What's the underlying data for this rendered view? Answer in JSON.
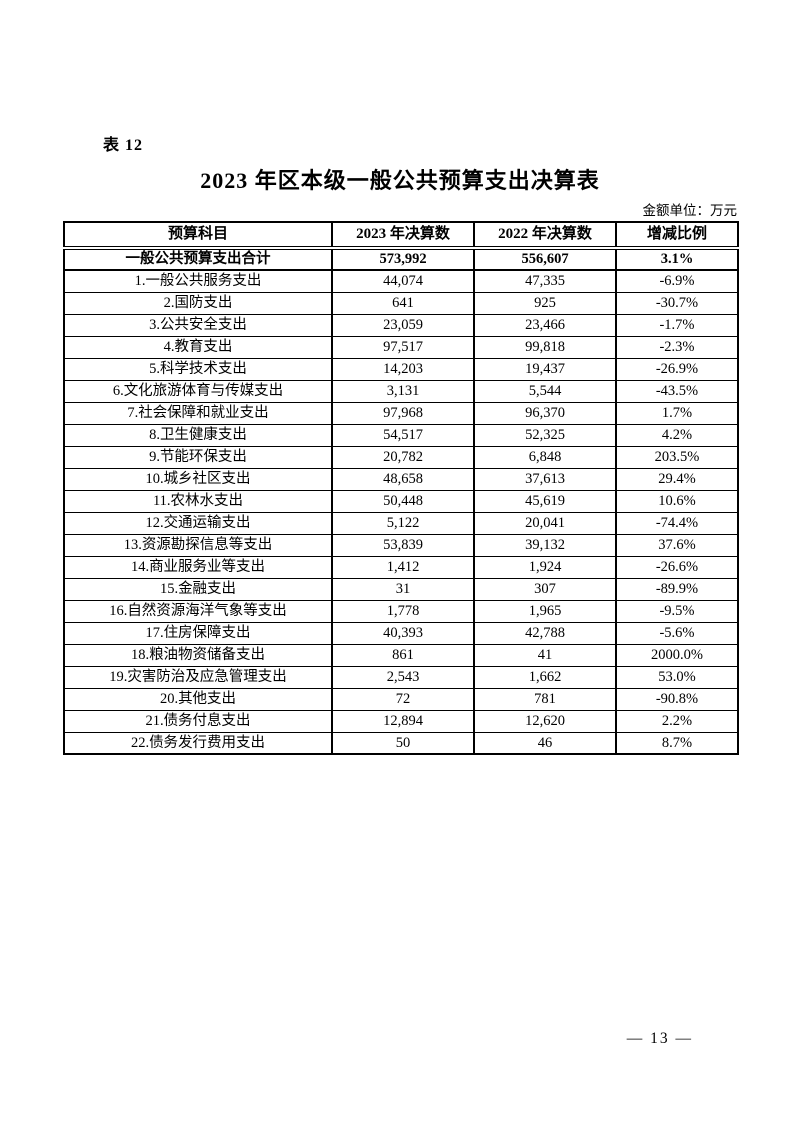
{
  "document": {
    "table_label": "表 12",
    "title": "2023 年区本级一般公共预算支出决算表",
    "unit_note": "金额单位：万元",
    "page_number": "— 13 —"
  },
  "table": {
    "headers": [
      "预算科目",
      "2023 年决算数",
      "2022 年决算数",
      "增减比例"
    ],
    "total_row": {
      "subject": "一般公共预算支出合计",
      "fy2023": "573,992",
      "fy2022": "556,607",
      "change": "3.1%"
    },
    "rows": [
      {
        "subject": "1.一般公共服务支出",
        "fy2023": "44,074",
        "fy2022": "47,335",
        "change": "-6.9%"
      },
      {
        "subject": "2.国防支出",
        "fy2023": "641",
        "fy2022": "925",
        "change": "-30.7%"
      },
      {
        "subject": "3.公共安全支出",
        "fy2023": "23,059",
        "fy2022": "23,466",
        "change": "-1.7%"
      },
      {
        "subject": "4.教育支出",
        "fy2023": "97,517",
        "fy2022": "99,818",
        "change": "-2.3%"
      },
      {
        "subject": "5.科学技术支出",
        "fy2023": "14,203",
        "fy2022": "19,437",
        "change": "-26.9%"
      },
      {
        "subject": "6.文化旅游体育与传媒支出",
        "fy2023": "3,131",
        "fy2022": "5,544",
        "change": "-43.5%"
      },
      {
        "subject": "7.社会保障和就业支出",
        "fy2023": "97,968",
        "fy2022": "96,370",
        "change": "1.7%"
      },
      {
        "subject": "8.卫生健康支出",
        "fy2023": "54,517",
        "fy2022": "52,325",
        "change": "4.2%"
      },
      {
        "subject": "9.节能环保支出",
        "fy2023": "20,782",
        "fy2022": "6,848",
        "change": "203.5%"
      },
      {
        "subject": "10.城乡社区支出",
        "fy2023": "48,658",
        "fy2022": "37,613",
        "change": "29.4%"
      },
      {
        "subject": "11.农林水支出",
        "fy2023": "50,448",
        "fy2022": "45,619",
        "change": "10.6%"
      },
      {
        "subject": "12.交通运输支出",
        "fy2023": "5,122",
        "fy2022": "20,041",
        "change": "-74.4%"
      },
      {
        "subject": "13.资源勘探信息等支出",
        "fy2023": "53,839",
        "fy2022": "39,132",
        "change": "37.6%"
      },
      {
        "subject": "14.商业服务业等支出",
        "fy2023": "1,412",
        "fy2022": "1,924",
        "change": "-26.6%"
      },
      {
        "subject": "15.金融支出",
        "fy2023": "31",
        "fy2022": "307",
        "change": "-89.9%"
      },
      {
        "subject": "16.自然资源海洋气象等支出",
        "fy2023": "1,778",
        "fy2022": "1,965",
        "change": "-9.5%"
      },
      {
        "subject": "17.住房保障支出",
        "fy2023": "40,393",
        "fy2022": "42,788",
        "change": "-5.6%"
      },
      {
        "subject": "18.粮油物资储备支出",
        "fy2023": "861",
        "fy2022": "41",
        "change": "2000.0%"
      },
      {
        "subject": "19.灾害防治及应急管理支出",
        "fy2023": "2,543",
        "fy2022": "1,662",
        "change": "53.0%"
      },
      {
        "subject": "20.其他支出",
        "fy2023": "72",
        "fy2022": "781",
        "change": "-90.8%"
      },
      {
        "subject": "21.债务付息支出",
        "fy2023": "12,894",
        "fy2022": "12,620",
        "change": "2.2%"
      },
      {
        "subject": "22.债务发行费用支出",
        "fy2023": "50",
        "fy2022": "46",
        "change": "8.7%"
      }
    ]
  },
  "colors": {
    "text": "#000000",
    "border": "#000000",
    "background": "#ffffff"
  }
}
